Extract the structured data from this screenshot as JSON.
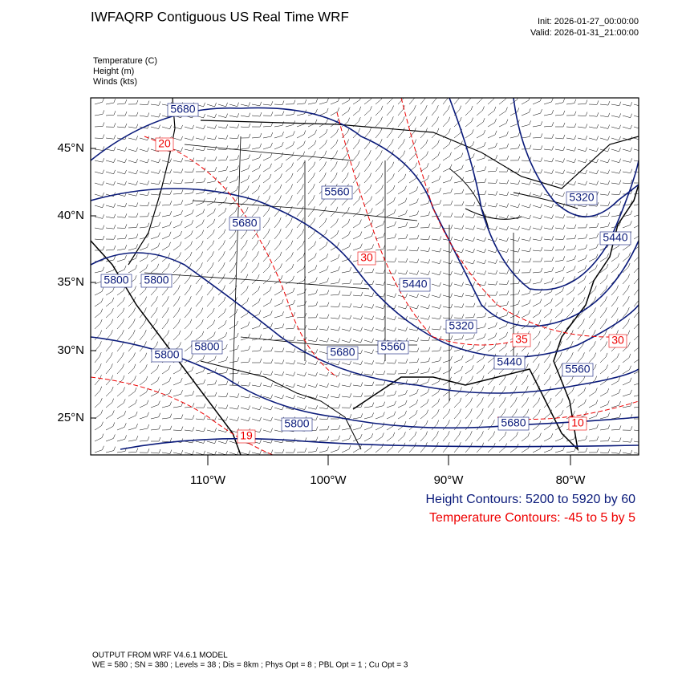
{
  "header": {
    "title": "IWFAQRP Contiguous US Real Time WRF",
    "init": "Init: 2026-01-27_00:00:00",
    "valid": "Valid: 2026-01-31_21:00:00"
  },
  "fields": [
    "Temperature   (C)",
    "Height   (m)",
    "Winds   (kts)"
  ],
  "map": {
    "lat_labels": [
      "45°N",
      "40°N",
      "35°N",
      "30°N",
      "25°N"
    ],
    "lon_labels": [
      "110°W",
      "100°W",
      "90°W",
      "80°W"
    ],
    "height_labels": [
      "5680",
      "5560",
      "5320",
      "5440",
      "5680",
      "5800",
      "5800",
      "5440",
      "5320",
      "5680",
      "5800",
      "5800",
      "5560",
      "5560",
      "5440",
      "5680",
      "5800"
    ],
    "temp_labels": [
      "20",
      "30",
      "35",
      "30",
      "10",
      "19"
    ]
  },
  "legend": [
    "Height Contours: 5200 to 5920 by 60",
    "Temperature Contours: -45 to 5 by 5"
  ],
  "footer": [
    "OUTPUT FROM WRF V4.6.1 MODEL",
    "WE = 580 ; SN = 380 ; Levels = 38 ; Dis = 8km ; Phys Opt = 8 ; PBL Opt = 1 ; Cu Opt = 3"
  ]
}
